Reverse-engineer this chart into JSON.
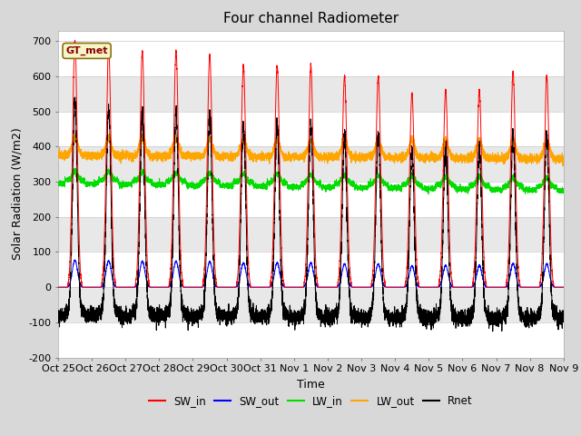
{
  "title": "Four channel Radiometer",
  "ylabel": "Solar Radiation (W/m2)",
  "xlabel": "Time",
  "ylim": [
    -200,
    730
  ],
  "yticks": [
    -200,
    -100,
    0,
    100,
    200,
    300,
    400,
    500,
    600,
    700
  ],
  "num_days": 15,
  "tick_labels": [
    "Oct 25",
    "Oct 26",
    "Oct 27",
    "Oct 28",
    "Oct 29",
    "Oct 30",
    "Oct 31",
    "Nov 1",
    "Nov 2",
    "Nov 3",
    "Nov 4",
    "Nov 5",
    "Nov 6",
    "Nov 7",
    "Nov 8",
    "Nov 9"
  ],
  "annotation_text": "GT_met",
  "colors": {
    "SW_in": "#ff0000",
    "SW_out": "#0000ff",
    "LW_in": "#00dd00",
    "LW_out": "#ffa500",
    "Rnet": "#000000"
  },
  "band_colors": [
    "#ffffff",
    "#e8e8e8"
  ],
  "grid_line_color": "#cccccc",
  "fig_bg": "#d8d8d8",
  "title_fontsize": 11,
  "label_fontsize": 9,
  "tick_fontsize": 8,
  "sw_peaks": [
    700,
    680,
    670,
    670,
    660,
    630,
    630,
    630,
    600,
    600,
    550,
    560,
    560,
    610,
    600
  ],
  "sw_out_scale": 0.11,
  "lw_in_base": 295,
  "lw_out_base": 370,
  "night_rnet": -80
}
